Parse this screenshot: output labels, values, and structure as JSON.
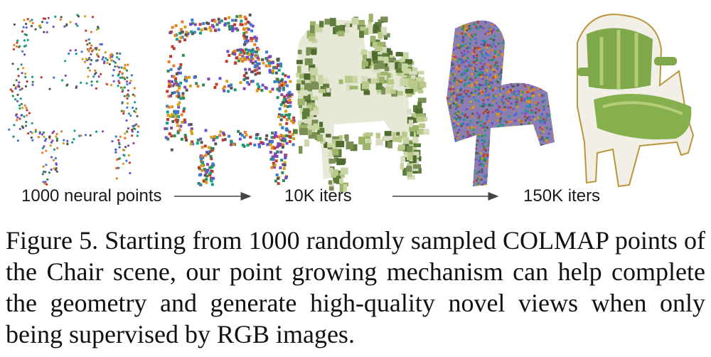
{
  "figure": {
    "labels": {
      "start": "1000 neural points",
      "mid": "10K iters",
      "end": "150K iters"
    },
    "caption": "Figure 5. Starting from 1000 randomly sampled COLMAP points of the Chair scene, our point growing mechanism can help complete the geometry and generate high-quality novel views when only being supervised by RGB images.",
    "colors": {
      "point_palette": [
        "#6b4fd1",
        "#2e8b57",
        "#c0392b",
        "#d4a017",
        "#3a7bd5",
        "#8e44ad",
        "#16a085",
        "#e67e22",
        "#555555"
      ],
      "chair_green": "#7fa84a",
      "chair_frame": "#f2efe6",
      "gold_trim": "#b8963a",
      "arrow": "#444444"
    }
  }
}
